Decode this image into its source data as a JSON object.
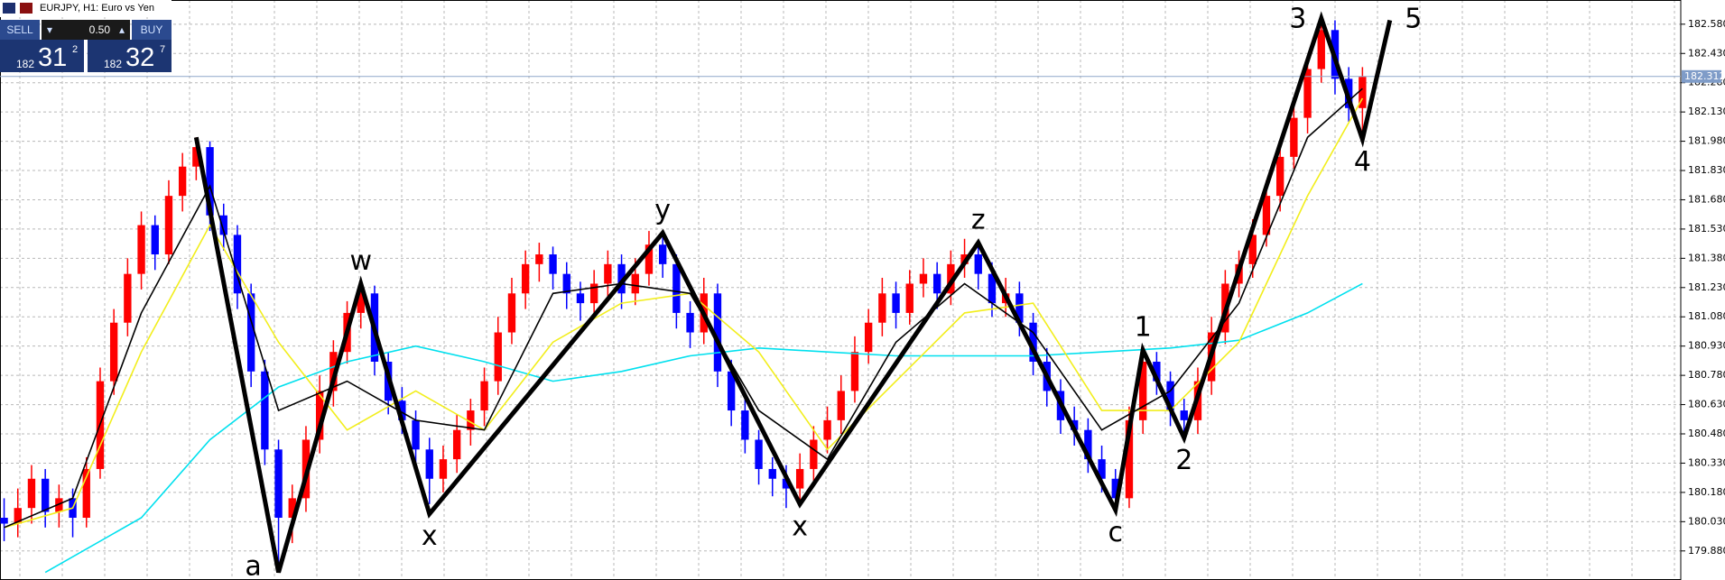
{
  "chart_data": {
    "type": "candlestick",
    "title": "EURJPY, H1:  Euro vs Yen",
    "trade_panel": {
      "sell": "SELL",
      "buy": "BUY",
      "lot": "0.50",
      "sell_big": "182",
      "sell_main": "31",
      "sell_small": "2",
      "buy_big": "182",
      "buy_main": "32",
      "buy_small": "7"
    },
    "up_color": "#ff0000",
    "down_color": "#0000ff",
    "xlim": [
      -0.3,
      122.2
    ],
    "ylim": [
      179.731,
      182.704
    ],
    "yticks": [
      {
        "value": 182.58,
        "label": "182.580"
      },
      {
        "value": 182.43,
        "label": "182.430"
      },
      {
        "value": 182.28,
        "label": "182.280"
      },
      {
        "value": 182.13,
        "label": "182.130"
      },
      {
        "value": 181.98,
        "label": "181.980"
      },
      {
        "value": 181.83,
        "label": "181.830"
      },
      {
        "value": 181.68,
        "label": "181.680"
      },
      {
        "value": 181.53,
        "label": "181.530"
      },
      {
        "value": 181.38,
        "label": "181.380"
      },
      {
        "value": 181.23,
        "label": "181.230"
      },
      {
        "value": 181.08,
        "label": "181.080"
      },
      {
        "value": 180.93,
        "label": "180.930"
      },
      {
        "value": 180.78,
        "label": "180.780"
      },
      {
        "value": 180.63,
        "label": "180.630"
      },
      {
        "value": 180.48,
        "label": "180.480"
      },
      {
        "value": 180.33,
        "label": "180.330"
      },
      {
        "value": 180.18,
        "label": "180.180"
      },
      {
        "value": 180.03,
        "label": "180.030"
      },
      {
        "value": 179.88,
        "label": "179.880"
      }
    ],
    "grid": true,
    "current_price": {
      "value": 182.312,
      "label": "182.312"
    },
    "ohlc": [
      [
        180.05,
        180.15,
        179.93,
        180.02
      ],
      [
        180.02,
        180.2,
        179.95,
        180.1
      ],
      [
        180.1,
        180.32,
        180.02,
        180.25
      ],
      [
        180.25,
        180.3,
        180.0,
        180.08
      ],
      [
        180.08,
        180.22,
        180.0,
        180.15
      ],
      [
        180.15,
        180.2,
        179.95,
        180.05
      ],
      [
        180.05,
        180.36,
        180.0,
        180.3
      ],
      [
        180.3,
        180.82,
        180.25,
        180.75
      ],
      [
        180.75,
        181.12,
        180.68,
        181.05
      ],
      [
        181.05,
        181.38,
        180.98,
        181.3
      ],
      [
        181.3,
        181.62,
        181.22,
        181.55
      ],
      [
        181.55,
        181.6,
        181.32,
        181.4
      ],
      [
        181.4,
        181.78,
        181.35,
        181.7
      ],
      [
        181.7,
        181.92,
        181.62,
        181.85
      ],
      [
        181.85,
        182.0,
        181.78,
        181.95
      ],
      [
        181.95,
        181.98,
        181.52,
        181.6
      ],
      [
        181.6,
        181.66,
        181.42,
        181.5
      ],
      [
        181.5,
        181.55,
        181.12,
        181.2
      ],
      [
        181.2,
        181.25,
        180.72,
        180.8
      ],
      [
        180.8,
        180.86,
        180.32,
        180.4
      ],
      [
        180.4,
        180.45,
        179.78,
        180.05
      ],
      [
        180.05,
        180.22,
        179.92,
        180.15
      ],
      [
        180.15,
        180.52,
        180.08,
        180.45
      ],
      [
        180.45,
        180.78,
        180.38,
        180.7
      ],
      [
        180.7,
        180.96,
        180.62,
        180.9
      ],
      [
        180.9,
        181.16,
        180.84,
        181.1
      ],
      [
        181.1,
        181.26,
        181.02,
        181.2
      ],
      [
        181.2,
        181.24,
        180.78,
        180.85
      ],
      [
        180.85,
        180.9,
        180.58,
        180.65
      ],
      [
        180.65,
        180.72,
        180.48,
        180.55
      ],
      [
        180.55,
        180.6,
        180.32,
        180.4
      ],
      [
        180.4,
        180.46,
        180.12,
        180.25
      ],
      [
        180.25,
        180.42,
        180.18,
        180.35
      ],
      [
        180.35,
        180.58,
        180.28,
        180.5
      ],
      [
        180.5,
        180.66,
        180.42,
        180.6
      ],
      [
        180.6,
        180.82,
        180.52,
        180.75
      ],
      [
        180.75,
        181.08,
        180.68,
        181.0
      ],
      [
        181.0,
        181.28,
        180.94,
        181.2
      ],
      [
        181.2,
        181.42,
        181.12,
        181.35
      ],
      [
        181.35,
        181.46,
        181.26,
        181.4
      ],
      [
        181.4,
        181.44,
        181.22,
        181.3
      ],
      [
        181.3,
        181.36,
        181.12,
        181.2
      ],
      [
        181.2,
        181.26,
        181.06,
        181.15
      ],
      [
        181.15,
        181.32,
        181.08,
        181.25
      ],
      [
        181.25,
        181.42,
        181.18,
        181.35
      ],
      [
        181.35,
        181.4,
        181.12,
        181.2
      ],
      [
        181.2,
        181.38,
        181.14,
        181.3
      ],
      [
        181.3,
        181.52,
        181.24,
        181.45
      ],
      [
        181.45,
        181.52,
        181.28,
        181.35
      ],
      [
        181.35,
        181.4,
        181.02,
        181.1
      ],
      [
        181.1,
        181.16,
        180.92,
        181.0
      ],
      [
        181.0,
        181.28,
        180.94,
        181.2
      ],
      [
        181.2,
        181.25,
        180.72,
        180.8
      ],
      [
        180.8,
        180.86,
        180.52,
        180.6
      ],
      [
        180.6,
        180.66,
        180.38,
        180.45
      ],
      [
        180.45,
        180.5,
        180.22,
        180.3
      ],
      [
        180.3,
        180.36,
        180.16,
        180.25
      ],
      [
        180.25,
        180.32,
        180.1,
        180.2
      ],
      [
        180.2,
        180.38,
        180.14,
        180.3
      ],
      [
        180.3,
        180.52,
        180.24,
        180.45
      ],
      [
        180.45,
        180.62,
        180.38,
        180.55
      ],
      [
        180.55,
        180.78,
        180.48,
        180.7
      ],
      [
        180.7,
        180.98,
        180.64,
        180.9
      ],
      [
        180.9,
        181.12,
        180.84,
        181.05
      ],
      [
        181.05,
        181.28,
        180.98,
        181.2
      ],
      [
        181.2,
        181.26,
        181.02,
        181.1
      ],
      [
        181.1,
        181.32,
        181.04,
        181.25
      ],
      [
        181.25,
        181.38,
        181.18,
        181.3
      ],
      [
        181.3,
        181.36,
        181.12,
        181.2
      ],
      [
        181.2,
        181.42,
        181.14,
        181.35
      ],
      [
        181.35,
        181.48,
        181.28,
        181.4
      ],
      [
        181.4,
        181.46,
        181.22,
        181.3
      ],
      [
        181.3,
        181.36,
        181.08,
        181.15
      ],
      [
        181.15,
        181.28,
        181.08,
        181.2
      ],
      [
        181.2,
        181.26,
        180.98,
        181.05
      ],
      [
        181.05,
        181.1,
        180.78,
        180.85
      ],
      [
        180.85,
        180.92,
        180.62,
        180.7
      ],
      [
        180.7,
        180.76,
        180.48,
        180.55
      ],
      [
        180.55,
        180.62,
        180.42,
        180.5
      ],
      [
        180.5,
        180.56,
        180.28,
        180.35
      ],
      [
        180.35,
        180.42,
        180.18,
        180.25
      ],
      [
        180.25,
        180.3,
        180.08,
        180.15
      ],
      [
        180.15,
        180.62,
        180.1,
        180.55
      ],
      [
        180.55,
        180.92,
        180.48,
        180.85
      ],
      [
        180.85,
        180.9,
        180.68,
        180.75
      ],
      [
        180.75,
        180.8,
        180.52,
        180.6
      ],
      [
        180.6,
        180.66,
        180.46,
        180.55
      ],
      [
        180.55,
        180.82,
        180.48,
        180.75
      ],
      [
        180.75,
        181.08,
        180.68,
        181.0
      ],
      [
        181.0,
        181.32,
        180.94,
        181.25
      ],
      [
        181.25,
        181.42,
        181.18,
        181.35
      ],
      [
        181.35,
        181.58,
        181.28,
        181.5
      ],
      [
        181.5,
        181.78,
        181.44,
        181.7
      ],
      [
        181.7,
        181.98,
        181.62,
        181.9
      ],
      [
        181.9,
        182.18,
        181.84,
        182.1
      ],
      [
        182.1,
        182.42,
        182.02,
        182.35
      ],
      [
        182.35,
        182.62,
        182.28,
        182.55
      ],
      [
        182.55,
        182.6,
        182.22,
        182.3
      ],
      [
        182.3,
        182.36,
        182.08,
        182.15
      ],
      [
        182.15,
        182.36,
        181.98,
        182.31
      ]
    ],
    "series": [
      {
        "color": "#00e0ee",
        "x": [
          3,
          10,
          15,
          20,
          25,
          30,
          35,
          40,
          45,
          50,
          55,
          60,
          65,
          70,
          75,
          80,
          85,
          90,
          95,
          99
        ],
        "values": [
          179.77,
          180.05,
          180.45,
          180.72,
          180.85,
          180.93,
          180.85,
          180.75,
          180.8,
          180.88,
          180.92,
          180.9,
          180.88,
          180.88,
          180.88,
          180.9,
          180.92,
          180.96,
          181.1,
          181.25
        ]
      },
      {
        "color": "#f2ee1c",
        "x": [
          0,
          5,
          10,
          15,
          20,
          25,
          30,
          35,
          40,
          45,
          50,
          55,
          60,
          65,
          70,
          75,
          80,
          85,
          90,
          95,
          99
        ],
        "values": [
          180.0,
          180.1,
          180.9,
          181.55,
          180.95,
          180.5,
          180.7,
          180.5,
          180.95,
          181.15,
          181.2,
          180.9,
          180.4,
          180.75,
          181.1,
          181.15,
          180.6,
          180.6,
          180.95,
          181.7,
          182.2
        ]
      },
      {
        "color": "#000000",
        "x": [
          0,
          5,
          10,
          15,
          20,
          25,
          30,
          35,
          40,
          45,
          50,
          55,
          60,
          65,
          70,
          75,
          80,
          85,
          90,
          95,
          99
        ],
        "values": [
          180.0,
          180.15,
          181.1,
          181.75,
          180.6,
          180.75,
          180.55,
          180.5,
          181.2,
          181.25,
          181.2,
          180.6,
          180.35,
          180.95,
          181.25,
          181.0,
          180.5,
          180.7,
          181.15,
          182.0,
          182.25
        ]
      }
    ],
    "waves": {
      "x": [
        14,
        20,
        26,
        31,
        48,
        58,
        71,
        81,
        83,
        86,
        96,
        99,
        101
      ],
      "values": [
        182.0,
        179.77,
        181.25,
        180.07,
        181.51,
        180.12,
        181.46,
        180.09,
        180.91,
        180.46,
        182.61,
        181.99,
        182.6
      ],
      "labels": [
        null,
        "a",
        "w",
        "x",
        "y",
        "x",
        "z",
        "c",
        "1",
        "2",
        "3",
        "4",
        "5"
      ]
    }
  }
}
